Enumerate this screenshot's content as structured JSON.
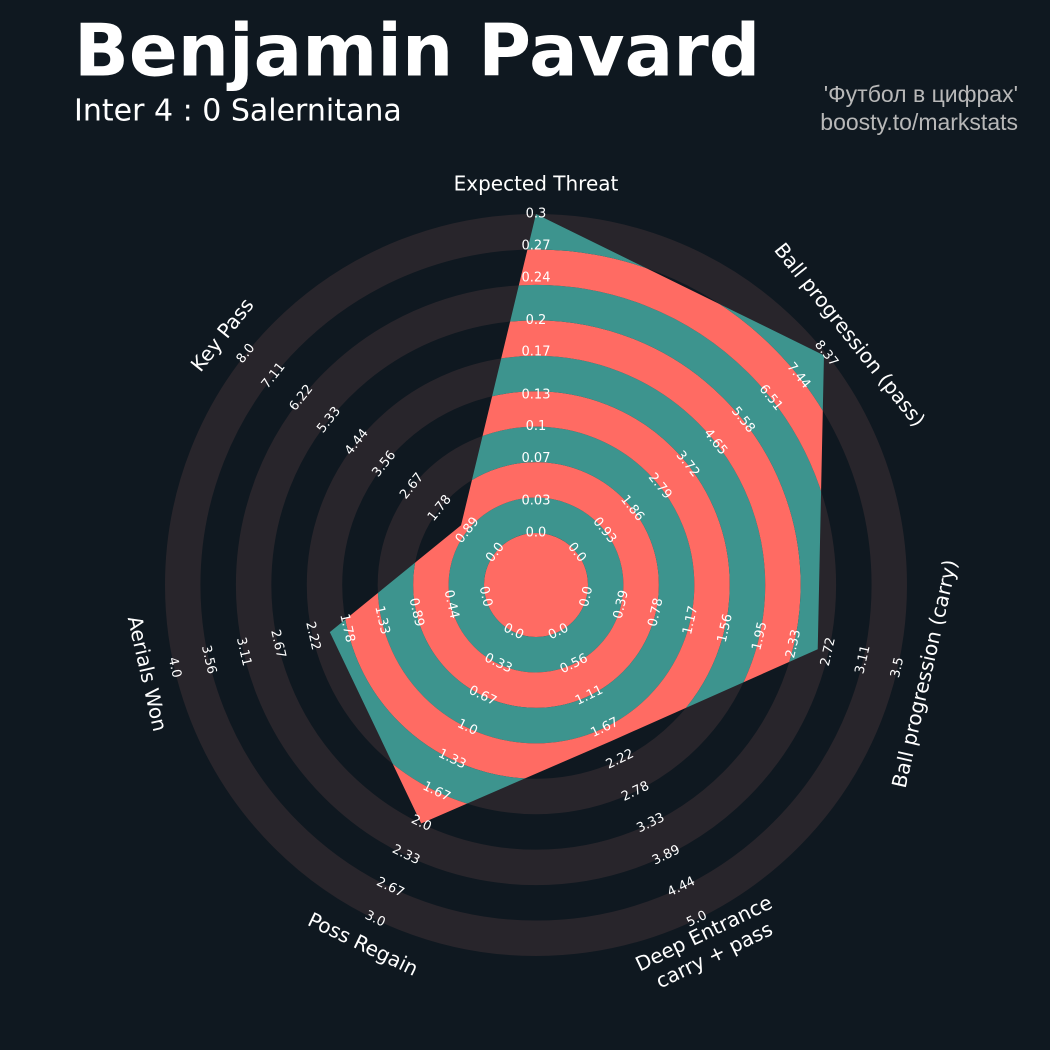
{
  "chart_data": {
    "type": "radar",
    "title": "Benjamin Pavard",
    "subtitle": "Inter 4 : 0 Salernitana",
    "credits": [
      "'Футбол в цифрах'",
      "boosty.to/markstats"
    ],
    "categories": [
      "Expected Threat",
      "Ball progression (pass)",
      "Ball progression (carry)",
      [
        "Deep Entrance",
        "carry + pass"
      ],
      "Poss Regain",
      "Aerials Won",
      "Key Pass"
    ],
    "axes": [
      {
        "lim": [
          0,
          0.3
        ],
        "ticks": [
          {
            "value": 0,
            "label": "0.0"
          },
          0.03,
          0.07,
          0.1,
          0.13,
          0.17,
          0.2,
          0.24,
          0.27,
          0.3
        ]
      },
      {
        "lim": [
          0,
          8.37
        ],
        "ticks": [
          {
            "value": 0,
            "label": "0.0"
          },
          0.93,
          1.86,
          2.79,
          3.72,
          4.65,
          5.58,
          6.51,
          7.44,
          8.37
        ]
      },
      {
        "lim": [
          0,
          3.5
        ],
        "ticks": [
          {
            "value": 0,
            "label": "0.0"
          },
          0.39,
          0.78,
          1.17,
          1.56,
          1.95,
          2.33,
          2.72,
          3.11,
          3.5
        ]
      },
      {
        "lim": [
          0,
          5
        ],
        "ticks": [
          {
            "value": 0,
            "label": "0.0"
          },
          0.56,
          1.11,
          1.67,
          2.22,
          2.78,
          3.33,
          3.89,
          4.44,
          {
            "value": 5,
            "label": "5.0"
          }
        ]
      },
      {
        "lim": [
          0,
          3
        ],
        "ticks": [
          {
            "value": 0,
            "label": "0.0"
          },
          0.33,
          0.67,
          {
            "value": 1,
            "label": "1.0"
          },
          1.33,
          1.67,
          {
            "value": 2,
            "label": "2.0"
          },
          2.33,
          2.67,
          {
            "value": 3,
            "label": "3.0"
          }
        ]
      },
      {
        "lim": [
          0,
          4
        ],
        "ticks": [
          {
            "value": 0,
            "label": "0.0"
          },
          0.44,
          0.89,
          1.33,
          1.78,
          2.22,
          2.67,
          3.11,
          3.56,
          {
            "value": 4,
            "label": "4.0"
          }
        ]
      },
      {
        "lim": [
          0,
          8
        ],
        "ticks": [
          {
            "value": 0,
            "label": "0.0"
          },
          0.89,
          1.78,
          2.67,
          3.56,
          4.44,
          5.33,
          6.22,
          7.11,
          {
            "value": 8,
            "label": "8.0"
          }
        ]
      }
    ],
    "series": [
      {
        "values": [
          0.3,
          8.3,
          2.6,
          1.9,
          2.0,
          2.0,
          1.1
        ],
        "colors": [
          "#ff6b63",
          "#3d948e"
        ]
      }
    ],
    "ring_color": "#28252b"
  }
}
